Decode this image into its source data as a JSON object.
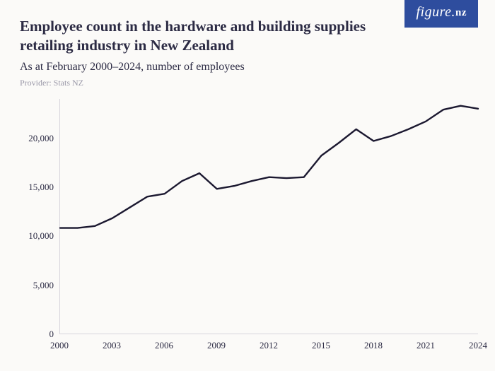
{
  "badge": {
    "text_main": "figure.",
    "text_suffix": "nz",
    "bg_color": "#2e4d9e",
    "text_color": "#ffffff"
  },
  "header": {
    "title": "Employee count in the hardware and building supplies retailing industry in New Zealand",
    "subtitle": "As at February 2000–2024, number of employees",
    "provider": "Provider: Stats NZ"
  },
  "chart": {
    "type": "line",
    "background_color": "#fbfaf8",
    "axis_color": "#d7d5dc",
    "text_color": "#2c2b44",
    "line_color": "#1b1830",
    "line_width": 2.4,
    "title_fontsize": 21,
    "subtitle_fontsize": 16,
    "provider_fontsize": 12,
    "tick_fontsize": 13,
    "y": {
      "min": 0,
      "max": 24000,
      "ticks": [
        0,
        5000,
        10000,
        15000,
        20000
      ],
      "tick_labels": [
        "0",
        "5,000",
        "10,000",
        "15,000",
        "20,000"
      ]
    },
    "x": {
      "min": 2000,
      "max": 2024,
      "ticks": [
        2000,
        2003,
        2006,
        2009,
        2012,
        2015,
        2018,
        2021,
        2024
      ],
      "tick_labels": [
        "2000",
        "2003",
        "2006",
        "2009",
        "2012",
        "2015",
        "2018",
        "2021",
        "2024"
      ]
    },
    "series": {
      "years": [
        2000,
        2001,
        2002,
        2003,
        2004,
        2005,
        2006,
        2007,
        2008,
        2009,
        2010,
        2011,
        2012,
        2013,
        2014,
        2015,
        2016,
        2017,
        2018,
        2019,
        2020,
        2021,
        2022,
        2023,
        2024
      ],
      "values": [
        10800,
        10800,
        11000,
        11800,
        12900,
        14000,
        14300,
        15600,
        16400,
        14800,
        15100,
        15600,
        16000,
        15900,
        16000,
        18200,
        19500,
        20900,
        19700,
        20200,
        20900,
        21700,
        22900,
        23300,
        23000
      ]
    }
  }
}
